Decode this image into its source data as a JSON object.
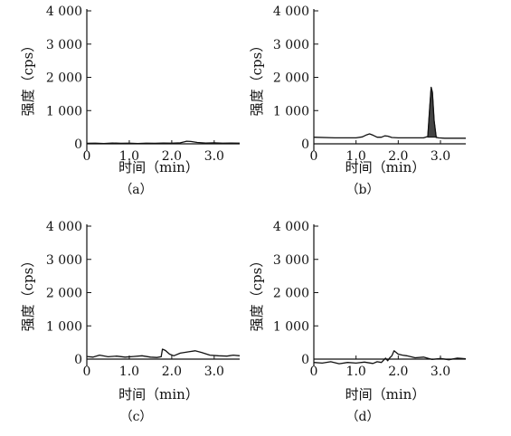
{
  "chart_data": [
    {
      "type": "line",
      "panel_label": "（a）",
      "xlabel": "时间（min）",
      "ylabel": "强度（cps）",
      "xlim": [
        0,
        3.6
      ],
      "ylim": [
        0,
        4000
      ],
      "x_ticks": [
        0,
        1.0,
        2.0,
        3.0
      ],
      "x_tick_labels": [
        "0",
        "1.0",
        "2.0",
        "3.0"
      ],
      "y_ticks": [
        0,
        1000,
        2000,
        3000,
        4000
      ],
      "y_tick_labels": [
        "0",
        "1 000",
        "2 000",
        "3 000",
        "4 000"
      ],
      "grid": false,
      "series": [
        {
          "x": [
            0,
            0.2,
            0.4,
            0.6,
            0.8,
            1.0,
            1.2,
            1.4,
            1.6,
            1.8,
            2.0,
            2.2,
            2.3,
            2.35,
            2.45,
            2.6,
            2.8,
            3.0,
            3.2,
            3.4,
            3.6
          ],
          "y": [
            15,
            20,
            10,
            25,
            15,
            20,
            10,
            20,
            15,
            25,
            20,
            30,
            60,
            80,
            70,
            40,
            25,
            30,
            20,
            25,
            20
          ],
          "filled_peak": false
        }
      ]
    },
    {
      "type": "line",
      "panel_label": "（b）",
      "xlabel": "时间（min）",
      "ylabel": "强度（cps）",
      "xlim": [
        0,
        3.6
      ],
      "ylim": [
        0,
        4000
      ],
      "x_ticks": [
        0,
        1.0,
        2.0,
        3.0
      ],
      "x_tick_labels": [
        "0",
        "1.0",
        "2.0",
        "3.0"
      ],
      "y_ticks": [
        0,
        1000,
        2000,
        3000,
        4000
      ],
      "y_tick_labels": [
        "0",
        "1 000",
        "2 000",
        "3 000",
        "4 000"
      ],
      "grid": false,
      "series": [
        {
          "x": [
            0,
            0.5,
            1.0,
            1.15,
            1.25,
            1.32,
            1.4,
            1.5,
            1.6,
            1.68,
            1.75,
            1.85,
            2.0,
            2.4,
            2.6,
            2.7,
            2.74,
            2.78,
            2.81,
            2.85,
            2.9,
            2.95,
            3.1,
            3.3,
            3.6
          ],
          "y": [
            200,
            180,
            180,
            210,
            270,
            300,
            260,
            200,
            200,
            240,
            230,
            190,
            180,
            180,
            180,
            220,
            1000,
            1700,
            1550,
            700,
            200,
            180,
            170,
            170,
            170
          ],
          "filled_peak": true,
          "peak_range": [
            2.7,
            2.92
          ]
        }
      ]
    },
    {
      "type": "line",
      "panel_label": "（c）",
      "xlabel": "时间（min）",
      "ylabel": "强度（cps）",
      "xlim": [
        0,
        3.6
      ],
      "ylim": [
        0,
        4000
      ],
      "x_ticks": [
        0,
        1.0,
        2.0,
        3.0
      ],
      "x_tick_labels": [
        "0",
        "1.0",
        "2.0",
        "3.0"
      ],
      "y_ticks": [
        0,
        1000,
        2000,
        3000,
        4000
      ],
      "y_tick_labels": [
        "0",
        "1 000",
        "2 000",
        "3 000",
        "4 000"
      ],
      "grid": false,
      "series": [
        {
          "x": [
            0,
            0.15,
            0.3,
            0.5,
            0.7,
            0.9,
            1.1,
            1.3,
            1.5,
            1.65,
            1.75,
            1.78,
            1.85,
            1.95,
            2.05,
            2.2,
            2.4,
            2.55,
            2.7,
            2.9,
            3.1,
            3.3,
            3.45,
            3.6
          ],
          "y": [
            80,
            60,
            120,
            70,
            90,
            60,
            80,
            100,
            60,
            50,
            70,
            300,
            260,
            150,
            100,
            180,
            220,
            250,
            200,
            120,
            100,
            90,
            120,
            100
          ],
          "filled_peak": false
        }
      ]
    },
    {
      "type": "line",
      "panel_label": "（d）",
      "xlabel": "时间（min）",
      "ylabel": "强度（cps）",
      "xlim": [
        0,
        3.6
      ],
      "ylim": [
        0,
        4000
      ],
      "x_ticks": [
        0,
        1.0,
        2.0,
        3.0
      ],
      "x_tick_labels": [
        "0",
        "1.0",
        "2.0",
        "3.0"
      ],
      "y_ticks": [
        0,
        1000,
        2000,
        3000,
        4000
      ],
      "y_tick_labels": [
        "0",
        "1 000",
        "2 000",
        "3 000",
        "4 000"
      ],
      "grid": false,
      "series": [
        {
          "x": [
            0,
            0.2,
            0.4,
            0.6,
            0.8,
            1.0,
            1.2,
            1.4,
            1.5,
            1.6,
            1.7,
            1.75,
            1.8,
            1.85,
            1.9,
            2.0,
            2.1,
            2.2,
            2.4,
            2.6,
            2.8,
            3.0,
            3.2,
            3.4,
            3.6
          ],
          "y": [
            -100,
            -120,
            -80,
            -140,
            -100,
            -120,
            -90,
            -130,
            -80,
            -100,
            30,
            -50,
            40,
            100,
            250,
            150,
            120,
            100,
            40,
            60,
            -10,
            20,
            -20,
            30,
            10
          ],
          "filled_peak": false
        }
      ]
    }
  ]
}
